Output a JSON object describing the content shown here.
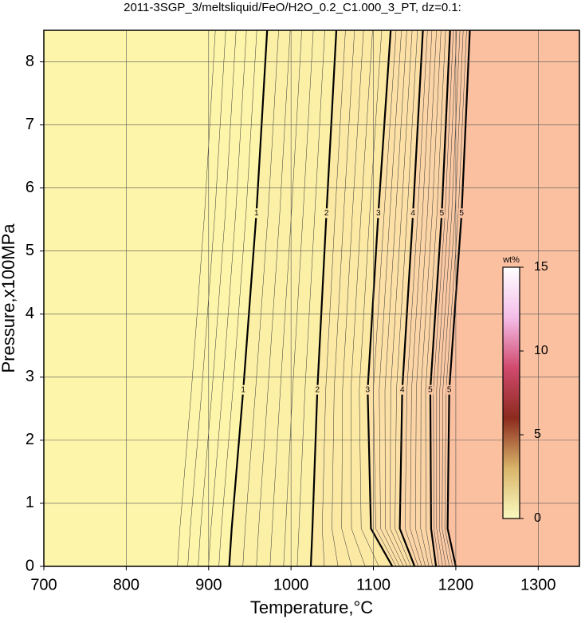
{
  "chart_data": {
    "type": "contour",
    "title": "2011-3SGP_3/meltsliquid/FeO/H2O_0.2_C1.000_3_PT, dz=0.1:",
    "x_label": "Temperature,°C",
    "y_label": "Pressure,x100MPa",
    "xlim": [
      700,
      1350
    ],
    "xticks": [
      700,
      800,
      900,
      1000,
      1100,
      1200,
      1300
    ],
    "ylim": [
      0,
      8.5
    ],
    "yticks": [
      0,
      1,
      2,
      3,
      4,
      5,
      6,
      7,
      8
    ],
    "grid": true,
    "background": "#fdf5aa",
    "pressures": [
      0,
      0.6,
      2.8,
      5.6,
      8.5
    ],
    "label_pressures": [
      2.8,
      5.6
    ],
    "contours": [
      {
        "level": 1,
        "fill": "#fcf0a7",
        "temperature": [
          925,
          928,
          942,
          958,
          971
        ]
      },
      {
        "level": 2,
        "fill": "#fce9a4",
        "temperature": [
          1024,
          1026,
          1032,
          1043,
          1055
        ]
      },
      {
        "level": 3,
        "fill": "#fce0a5",
        "temperature": [
          1123,
          1097,
          1093,
          1106,
          1121
        ]
      },
      {
        "level": 4,
        "fill": "#fcd5a6",
        "temperature": [
          1150,
          1132,
          1135,
          1148,
          1160
        ]
      },
      {
        "level": 5,
        "fill": "#fbcaa4",
        "temperature": [
          1176,
          1170,
          1169,
          1183,
          1193
        ]
      },
      {
        "level": 5,
        "fill": "#fac0a0",
        "temperature": [
          1200,
          1190,
          1192,
          1207,
          1217
        ]
      }
    ],
    "colorbar": {
      "label": "wt%",
      "lim": [
        0,
        15
      ],
      "ticks": [
        0,
        5,
        10,
        15
      ],
      "colors": [
        "#fafac0",
        "#d9b46a",
        "#8c2a1e",
        "#d14a6e",
        "#f4bde8",
        "#ffffff"
      ]
    }
  }
}
